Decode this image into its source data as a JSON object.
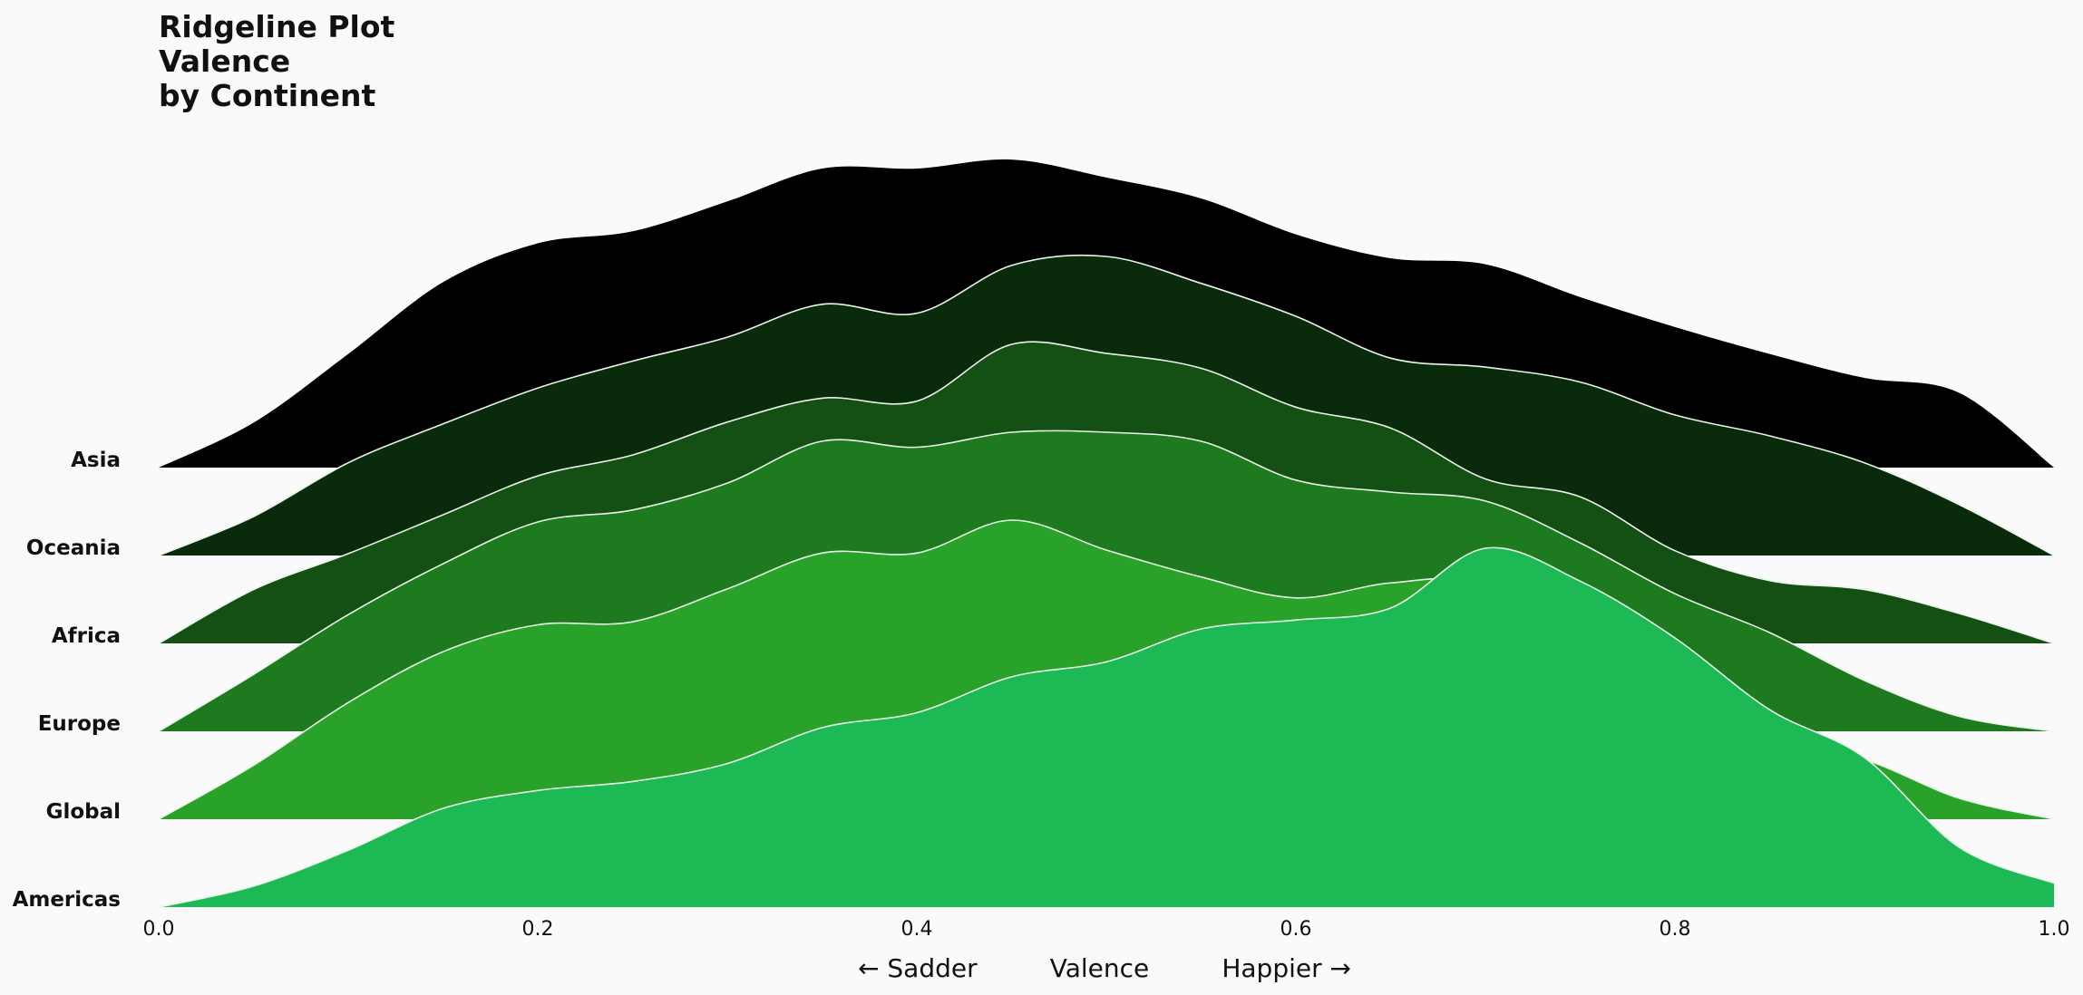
{
  "chart_data": {
    "type": "area",
    "subtype": "ridgeline",
    "title_lines": [
      "Ridgeline Plot",
      "Valence",
      "by Continent"
    ],
    "xlabel": "← Sadder         Valence         Happier →",
    "xlim": [
      0.0,
      1.0
    ],
    "xticks": [
      0.0,
      0.2,
      0.4,
      0.6,
      0.8,
      1.0
    ],
    "xtick_labels": [
      "0.0",
      "0.2",
      "0.4",
      "0.6",
      "0.8",
      "1.0"
    ],
    "grid": false,
    "legend": "none",
    "x": [
      0.0,
      0.05,
      0.1,
      0.15,
      0.2,
      0.25,
      0.3,
      0.35,
      0.4,
      0.45,
      0.5,
      0.55,
      0.6,
      0.65,
      0.7,
      0.75,
      0.8,
      0.85,
      0.9,
      0.95,
      1.0
    ],
    "series": [
      {
        "name": "Asia",
        "color": "#000000",
        "values": [
          0.0,
          0.15,
          0.38,
          0.62,
          0.75,
          0.79,
          0.89,
          1.0,
          1.0,
          1.03,
          0.97,
          0.9,
          0.78,
          0.7,
          0.68,
          0.57,
          0.47,
          0.38,
          0.3,
          0.25,
          0.0
        ]
      },
      {
        "name": "Oceania",
        "color": "#0a2a0c",
        "values": [
          0.0,
          0.13,
          0.31,
          0.44,
          0.56,
          0.65,
          0.73,
          0.84,
          0.81,
          0.97,
          1.0,
          0.91,
          0.8,
          0.66,
          0.63,
          0.58,
          0.47,
          0.4,
          0.31,
          0.17,
          0.0
        ]
      },
      {
        "name": "Africa",
        "color": "#145014",
        "values": [
          0.0,
          0.18,
          0.3,
          0.43,
          0.56,
          0.63,
          0.74,
          0.82,
          0.81,
          1.0,
          0.97,
          0.92,
          0.79,
          0.72,
          0.55,
          0.49,
          0.31,
          0.21,
          0.18,
          0.1,
          0.0
        ]
      },
      {
        "name": "Europe",
        "color": "#1e7a1e",
        "values": [
          0.0,
          0.19,
          0.39,
          0.56,
          0.7,
          0.74,
          0.83,
          0.97,
          0.95,
          1.0,
          1.0,
          0.97,
          0.84,
          0.8,
          0.77,
          0.63,
          0.46,
          0.33,
          0.17,
          0.05,
          0.0
        ]
      },
      {
        "name": "Global",
        "color": "#28a228",
        "values": [
          0.0,
          0.18,
          0.39,
          0.56,
          0.65,
          0.66,
          0.77,
          0.89,
          0.89,
          1.0,
          0.9,
          0.81,
          0.74,
          0.79,
          0.79,
          0.6,
          0.4,
          0.27,
          0.2,
          0.07,
          0.0
        ]
      },
      {
        "name": "Americas",
        "color": "#1db954",
        "values": [
          0.0,
          0.07,
          0.19,
          0.33,
          0.39,
          0.42,
          0.48,
          0.6,
          0.65,
          0.77,
          0.82,
          0.93,
          0.96,
          1.0,
          1.2,
          1.09,
          0.9,
          0.66,
          0.5,
          0.2,
          0.08
        ]
      }
    ]
  }
}
